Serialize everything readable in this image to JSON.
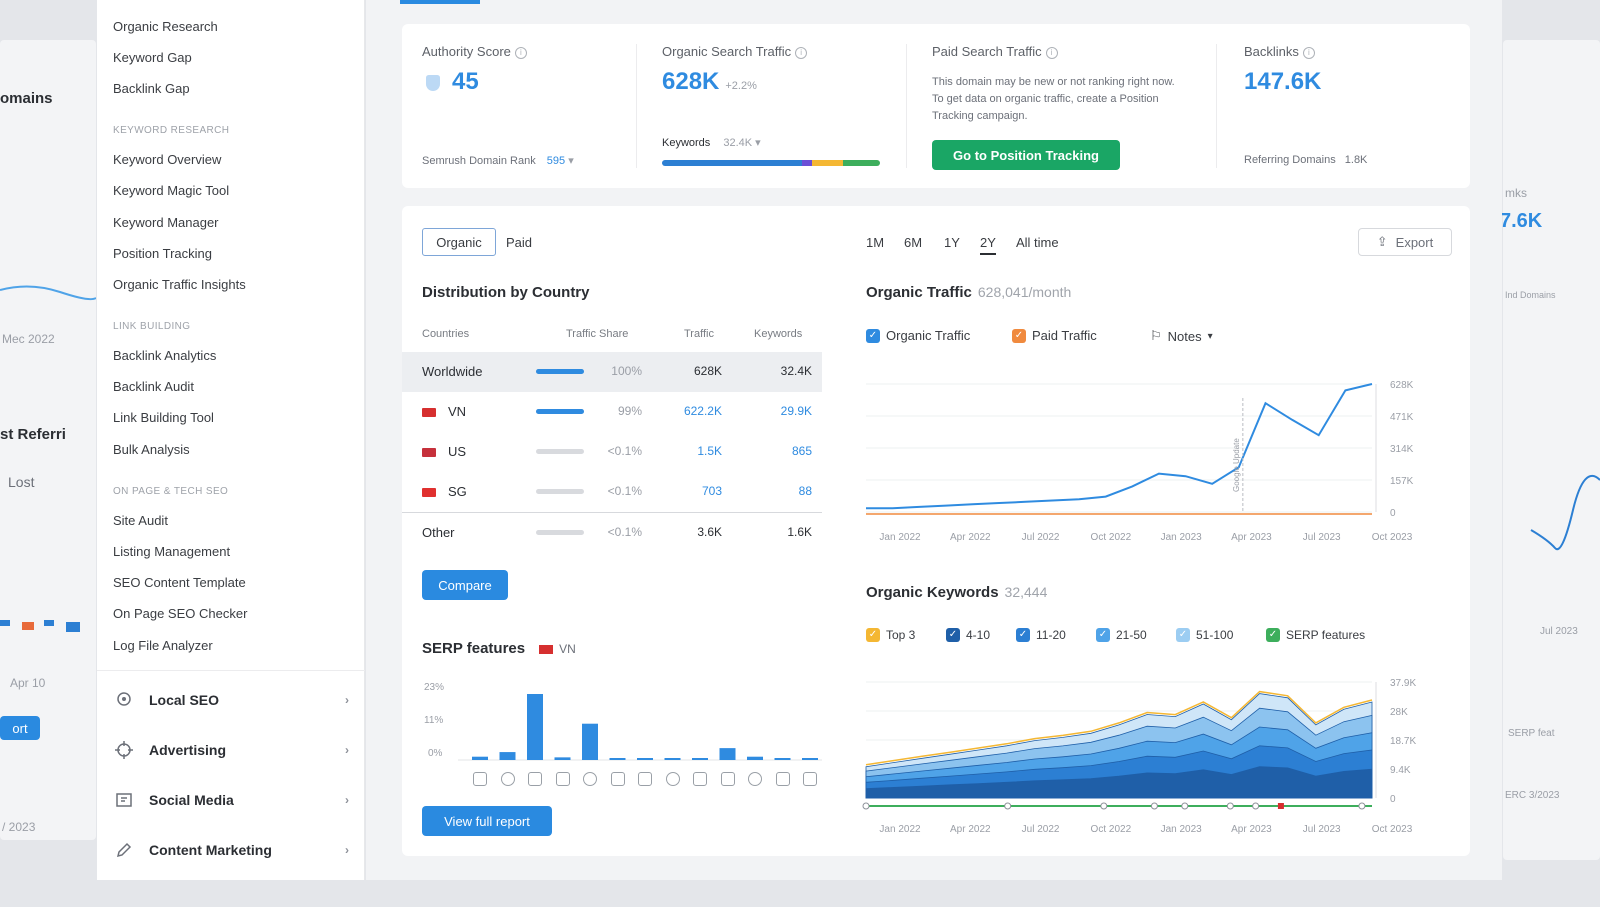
{
  "background": {
    "left_title_1": "omains",
    "left_title_2": "st Referri",
    "left_lost": "Lost",
    "left_axis": "Mec 2022",
    "left_badge": "Apr 10",
    "left_btn": "ort",
    "left_date": "/ 2023",
    "right_val": "7.6K",
    "right_label": "mks",
    "right_small": "Ind Domains",
    "right_serp": "SERP feat",
    "right_bottom": "ERC 3/2023",
    "right_jul": "Jul 2023"
  },
  "sidebar": {
    "top_items": [
      "Organic Research",
      "Keyword Gap",
      "Backlink Gap"
    ],
    "sections": [
      {
        "heading": "KEYWORD RESEARCH",
        "items": [
          "Keyword Overview",
          "Keyword Magic Tool",
          "Keyword Manager",
          "Position Tracking",
          "Organic Traffic Insights"
        ]
      },
      {
        "heading": "LINK BUILDING",
        "items": [
          "Backlink Analytics",
          "Backlink Audit",
          "Link Building Tool",
          "Bulk Analysis"
        ]
      },
      {
        "heading": "ON PAGE & TECH SEO",
        "items": [
          "Site Audit",
          "Listing Management",
          "SEO Content Template",
          "On Page SEO Checker",
          "Log File Analyzer"
        ]
      }
    ],
    "groups": [
      {
        "label": "Local SEO",
        "icon": "location-icon"
      },
      {
        "label": "Advertising",
        "icon": "target-icon"
      },
      {
        "label": "Social Media",
        "icon": "social-icon"
      },
      {
        "label": "Content Marketing",
        "icon": "pen-icon"
      }
    ]
  },
  "kpis": {
    "authority": {
      "label": "Authority Score",
      "value": "45",
      "foot_label": "Semrush Domain Rank",
      "foot_value": "595"
    },
    "organic": {
      "label": "Organic Search Traffic",
      "value": "628K",
      "delta": "+2.2%",
      "foot_label": "Keywords",
      "foot_value": "32.4K"
    },
    "paid": {
      "label": "Paid Search Traffic",
      "text": "This domain may be new or not ranking right now. To get data on organic traffic, create a Position Tracking campaign.",
      "button": "Go to Position Tracking"
    },
    "backlinks": {
      "label": "Backlinks",
      "value": "147.6K",
      "foot_label": "Referring Domains",
      "foot_value": "1.8K"
    }
  },
  "distribution": {
    "tabs": [
      "Organic",
      "Paid"
    ],
    "title": "Distribution by Country",
    "headers": [
      "Countries",
      "Traffic Share",
      "Traffic",
      "Keywords"
    ],
    "rows": [
      {
        "country": "Worldwide",
        "flag": "",
        "share": "100%",
        "share_fraction": 1.0,
        "traffic": "628K",
        "keywords": "32.4K"
      },
      {
        "country": "VN",
        "flag": "#d62f2f",
        "share": "99%",
        "share_fraction": 0.99,
        "traffic": "622.2K",
        "keywords": "29.9K"
      },
      {
        "country": "US",
        "flag": "#c6303b",
        "share": "<0.1%",
        "share_fraction": 0.0,
        "traffic": "1.5K",
        "keywords": "865"
      },
      {
        "country": "SG",
        "flag": "#e0302f",
        "share": "<0.1%",
        "share_fraction": 0.0,
        "traffic": "703",
        "keywords": "88"
      },
      {
        "country": "Other",
        "flag": "",
        "share": "<0.1%",
        "share_fraction": 0.0,
        "traffic": "3.6K",
        "keywords": "1.6K"
      }
    ],
    "compare_button": "Compare"
  },
  "serp": {
    "title": "SERP features",
    "country": "VN",
    "y_ticks": [
      "23%",
      "11%",
      "0%"
    ],
    "bars": [
      0.05,
      0.12,
      1.0,
      0.04,
      0.55,
      0.0,
      0.0,
      0.0,
      0.03,
      0.18,
      0.05,
      0.03,
      0.0
    ],
    "button": "View full report"
  },
  "controls": {
    "periods": [
      "1M",
      "6M",
      "1Y",
      "2Y",
      "All time"
    ],
    "active_period": "2Y",
    "export": "Export"
  },
  "traffic_chart": {
    "title": "Organic Traffic",
    "subtitle": "628,041/month",
    "legend": [
      "Organic Traffic",
      "Paid Traffic",
      "Notes"
    ],
    "y_ticks": [
      "628K",
      "471K",
      "314K",
      "157K",
      "0"
    ],
    "x_ticks": [
      "Jan 2022",
      "Apr 2022",
      "Jul 2022",
      "Oct 2022",
      "Jan 2023",
      "Apr 2023",
      "Jul 2023",
      "Oct 2023"
    ],
    "values": [
      0.03,
      0.03,
      0.04,
      0.05,
      0.06,
      0.07,
      0.08,
      0.09,
      0.1,
      0.12,
      0.2,
      0.3,
      0.28,
      0.22,
      0.35,
      0.85,
      0.72,
      0.6,
      0.95,
      1.0
    ],
    "marker_label": "Google Update"
  },
  "keywords_chart": {
    "title": "Organic Keywords",
    "subtitle": "32,444",
    "legend": [
      {
        "label": "Top 3",
        "color": "#f4b733"
      },
      {
        "label": "4-10",
        "color": "#1f5fa8"
      },
      {
        "label": "11-20",
        "color": "#2c7fd3"
      },
      {
        "label": "21-50",
        "color": "#4fa3e8"
      },
      {
        "label": "51-100",
        "color": "#9ccdf2"
      },
      {
        "label": "SERP features",
        "color": "#3dae5c"
      }
    ],
    "y_ticks": [
      "37.9K",
      "28K",
      "18.7K",
      "9.4K",
      "0"
    ],
    "x_ticks": [
      "Jan 2022",
      "Apr 2022",
      "Jul 2022",
      "Oct 2022",
      "Jan 2023",
      "Apr 2023",
      "Jul 2023",
      "Oct 2023"
    ],
    "values": [
      0.3,
      0.34,
      0.38,
      0.42,
      0.46,
      0.5,
      0.55,
      0.58,
      0.62,
      0.7,
      0.8,
      0.78,
      0.9,
      0.75,
      1.0,
      0.96,
      0.7,
      0.85,
      0.92
    ]
  }
}
